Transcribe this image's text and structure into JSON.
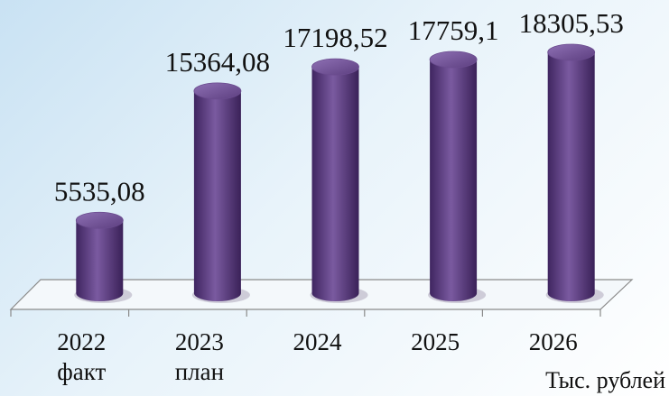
{
  "chart_data": {
    "type": "bar3d",
    "categories": [
      "2022\nфакт",
      "2023\nплан",
      "2024",
      "2025",
      "2026"
    ],
    "values": [
      5535.08,
      15364.08,
      17198.52,
      17759.1,
      18305.53
    ],
    "value_labels": [
      "5535,08",
      "15364,08",
      "17198,52",
      "17759,1",
      "18305,53"
    ],
    "color": "#6b4c8f",
    "unit_label": "Тыс. рублей"
  }
}
